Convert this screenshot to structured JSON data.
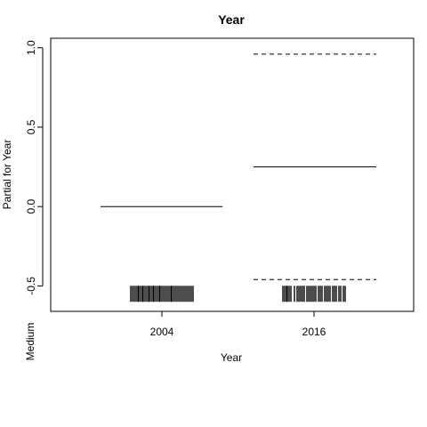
{
  "chart_data": {
    "type": "line",
    "title": "Year",
    "xlabel": "Year",
    "ylabel": "Partial for Year",
    "factor_level_label": "Medium",
    "ylim": [
      -0.66,
      1.06
    ],
    "yticks": [
      -0.5,
      0.0,
      0.5,
      1.0
    ],
    "ytick_labels": [
      "-0.5",
      "0.0",
      "0.5",
      "1.0"
    ],
    "categories": [
      "2004",
      "2016"
    ],
    "estimate": [
      0.0,
      0.25
    ],
    "ci_upper": [
      null,
      0.96
    ],
    "ci_lower": [
      null,
      -0.46
    ],
    "rug_y": -0.555,
    "rug": [
      [
        -0.35,
        -0.33,
        -0.31,
        -0.29,
        -0.27,
        -0.26,
        -0.24,
        -0.22,
        -0.21,
        -0.19,
        -0.17,
        -0.15,
        -0.14,
        -0.12,
        -0.1,
        -0.09,
        -0.07,
        -0.05,
        -0.03,
        -0.02,
        0.0,
        0.02,
        0.04,
        0.06,
        0.08,
        0.1,
        0.11,
        0.13,
        0.15,
        0.17,
        0.19,
        0.21,
        0.23,
        0.25,
        0.27,
        0.29,
        0.31,
        0.33,
        0.35
      ],
      [
        -0.35,
        -0.33,
        -0.31,
        -0.3,
        -0.28,
        -0.26,
        -0.22,
        -0.19,
        -0.17,
        -0.15,
        -0.13,
        -0.11,
        -0.08,
        -0.06,
        -0.04,
        -0.02,
        0.0,
        0.02,
        0.05,
        0.07,
        0.09,
        0.12,
        0.14,
        0.16,
        0.18,
        0.21,
        0.23,
        0.25,
        0.28,
        0.3,
        0.33,
        0.35
      ]
    ],
    "grid": false,
    "legend": "none"
  }
}
